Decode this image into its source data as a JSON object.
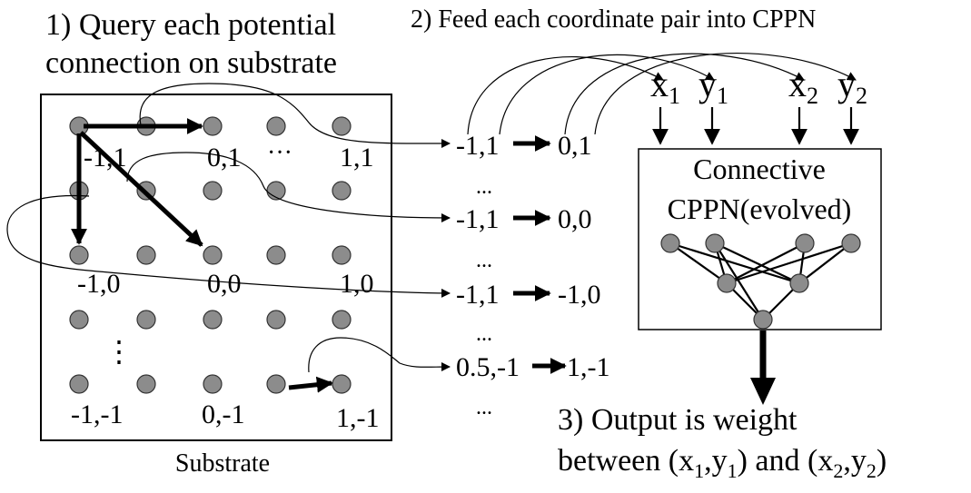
{
  "step1": {
    "line1": "1) Query each potential",
    "line2": "connection on substrate"
  },
  "step2": {
    "label": "2) Feed each coordinate pair into CPPN"
  },
  "step3": {
    "line1": "3) Output is weight",
    "prefix": "between (x",
    "sub1": "1",
    "mid1": ",y",
    "sub2": "1",
    "mid2": ") and (x",
    "sub3": "2",
    "mid3": ",y",
    "sub4": "2",
    "suffix": ")"
  },
  "substrate": {
    "caption": "Substrate",
    "coord_labels": [
      "-1,1",
      "0,1",
      "···",
      "1,1",
      "-1,0",
      "0,0",
      "1,0",
      "-1,-1",
      "0,-1",
      "1,-1"
    ],
    "vdots": "⋮"
  },
  "queries": [
    {
      "from": "-1,1",
      "to": "0,1"
    },
    {
      "from": "-1,1",
      "to": "0,0"
    },
    {
      "from": "-1,1",
      "to": "-1,0"
    },
    {
      "from": "0.5,-1",
      "to": "1,-1"
    }
  ],
  "ellipsis": "...",
  "cppn": {
    "title_line1": "Connective",
    "title_line2": "CPPN(evolved)",
    "inputs": [
      {
        "var": "x",
        "sub": "1"
      },
      {
        "var": "y",
        "sub": "1"
      },
      {
        "var": "x",
        "sub": "2"
      },
      {
        "var": "y",
        "sub": "2"
      }
    ]
  }
}
